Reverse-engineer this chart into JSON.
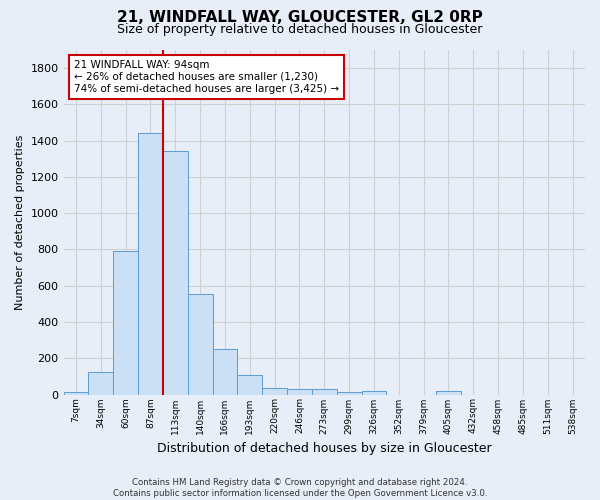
{
  "title1": "21, WINDFALL WAY, GLOUCESTER, GL2 0RP",
  "title2": "Size of property relative to detached houses in Gloucester",
  "xlabel": "Distribution of detached houses by size in Gloucester",
  "ylabel": "Number of detached properties",
  "footnote": "Contains HM Land Registry data © Crown copyright and database right 2024.\nContains public sector information licensed under the Open Government Licence v3.0.",
  "bin_labels": [
    "7sqm",
    "34sqm",
    "60sqm",
    "87sqm",
    "113sqm",
    "140sqm",
    "166sqm",
    "193sqm",
    "220sqm",
    "246sqm",
    "273sqm",
    "299sqm",
    "326sqm",
    "352sqm",
    "379sqm",
    "405sqm",
    "432sqm",
    "458sqm",
    "485sqm",
    "511sqm",
    "538sqm"
  ],
  "bar_heights": [
    15,
    125,
    790,
    1440,
    1345,
    555,
    250,
    110,
    35,
    30,
    30,
    15,
    20,
    0,
    0,
    20,
    0,
    0,
    0,
    0,
    0
  ],
  "bar_color": "#cce0f5",
  "bar_edge_color": "#5b9bd5",
  "vline_color": "#cc0000",
  "vline_bar_index": 3,
  "annotation_text": "21 WINDFALL WAY: 94sqm\n← 26% of detached houses are smaller (1,230)\n74% of semi-detached houses are larger (3,425) →",
  "annotation_box_color": "#ffffff",
  "annotation_box_edge_color": "#cc0000",
  "ylim": [
    0,
    1900
  ],
  "yticks": [
    0,
    200,
    400,
    600,
    800,
    1000,
    1200,
    1400,
    1600,
    1800
  ],
  "grid_color": "#d0d0d0",
  "bg_color": "#e8eef8",
  "plot_bg_color": "#e8eef8"
}
